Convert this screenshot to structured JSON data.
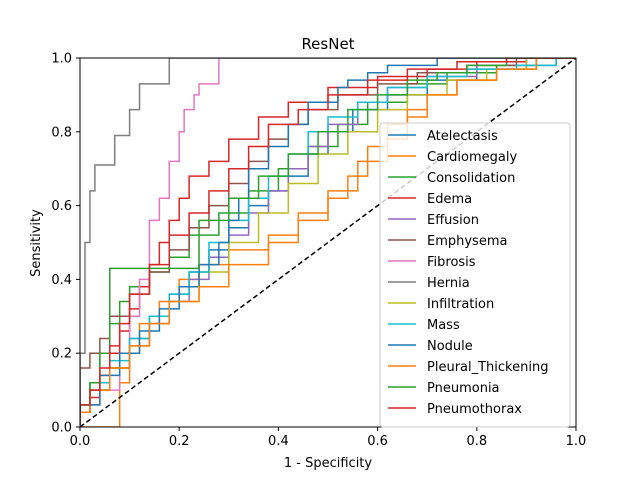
{
  "chart_data": {
    "type": "line",
    "title": "ResNet",
    "xlabel": "1 - Specificity",
    "ylabel": "Sensitivity",
    "xlim": [
      0,
      1
    ],
    "ylim": [
      0,
      1
    ],
    "xticks": [
      "0.0",
      "0.2",
      "0.4",
      "0.6",
      "0.8",
      "1.0"
    ],
    "yticks": [
      "0.0",
      "0.2",
      "0.4",
      "0.6",
      "0.8",
      "1.0"
    ],
    "grid": false,
    "legend_position": "lower-right",
    "diagonal": {
      "style": "dashed",
      "color": "#000000"
    },
    "series": [
      {
        "name": "Atelectasis",
        "color": "#1f77b4",
        "points": [
          [
            0,
            0
          ],
          [
            0.02,
            0.04
          ],
          [
            0.06,
            0.1
          ],
          [
            0.1,
            0.16
          ],
          [
            0.14,
            0.24
          ],
          [
            0.18,
            0.3
          ],
          [
            0.22,
            0.36
          ],
          [
            0.26,
            0.42
          ],
          [
            0.3,
            0.48
          ],
          [
            0.34,
            0.54
          ],
          [
            0.38,
            0.6
          ],
          [
            0.42,
            0.64
          ],
          [
            0.46,
            0.68
          ],
          [
            0.5,
            0.74
          ],
          [
            0.55,
            0.8
          ],
          [
            0.62,
            0.86
          ],
          [
            0.7,
            0.9
          ],
          [
            0.8,
            0.94
          ],
          [
            0.9,
            0.97
          ],
          [
            0.96,
            0.98
          ],
          [
            1,
            1
          ]
        ]
      },
      {
        "name": "Cardiomegaly",
        "color": "#ff7f0e",
        "points": [
          [
            0,
            0
          ],
          [
            0.08,
            0
          ],
          [
            0.08,
            0.08
          ],
          [
            0.1,
            0.12
          ],
          [
            0.12,
            0.2
          ],
          [
            0.16,
            0.28
          ],
          [
            0.2,
            0.34
          ],
          [
            0.24,
            0.4
          ],
          [
            0.3,
            0.44
          ],
          [
            0.38,
            0.48
          ],
          [
            0.44,
            0.52
          ],
          [
            0.5,
            0.58
          ],
          [
            0.56,
            0.64
          ],
          [
            0.62,
            0.72
          ],
          [
            0.66,
            0.78
          ],
          [
            0.7,
            0.84
          ],
          [
            0.76,
            0.9
          ],
          [
            0.84,
            0.94
          ],
          [
            0.92,
            0.97
          ],
          [
            1,
            1
          ]
        ]
      },
      {
        "name": "Consolidation",
        "color": "#2ca02c",
        "points": [
          [
            0,
            0
          ],
          [
            0.02,
            0.06
          ],
          [
            0.04,
            0.12
          ],
          [
            0.06,
            0.2
          ],
          [
            0.08,
            0.28
          ],
          [
            0.1,
            0.34
          ],
          [
            0.14,
            0.38
          ],
          [
            0.18,
            0.42
          ],
          [
            0.22,
            0.46
          ],
          [
            0.28,
            0.52
          ],
          [
            0.34,
            0.58
          ],
          [
            0.4,
            0.64
          ],
          [
            0.46,
            0.7
          ],
          [
            0.52,
            0.76
          ],
          [
            0.58,
            0.82
          ],
          [
            0.66,
            0.88
          ],
          [
            0.74,
            0.93
          ],
          [
            0.84,
            0.96
          ],
          [
            0.92,
            0.98
          ],
          [
            1,
            1
          ]
        ]
      },
      {
        "name": "Edema",
        "color": "#d62728",
        "points": [
          [
            0,
            0
          ],
          [
            0.02,
            0.04
          ],
          [
            0.04,
            0.08
          ],
          [
            0.06,
            0.14
          ],
          [
            0.08,
            0.2
          ],
          [
            0.1,
            0.26
          ],
          [
            0.12,
            0.32
          ],
          [
            0.14,
            0.38
          ],
          [
            0.16,
            0.44
          ],
          [
            0.18,
            0.5
          ],
          [
            0.2,
            0.56
          ],
          [
            0.22,
            0.62
          ],
          [
            0.26,
            0.68
          ],
          [
            0.3,
            0.72
          ],
          [
            0.36,
            0.78
          ],
          [
            0.42,
            0.84
          ],
          [
            0.5,
            0.88
          ],
          [
            0.6,
            0.92
          ],
          [
            0.7,
            0.95
          ],
          [
            0.8,
            0.97
          ],
          [
            0.9,
            0.99
          ],
          [
            1,
            1
          ]
        ]
      },
      {
        "name": "Effusion",
        "color": "#9467bd",
        "points": [
          [
            0,
            0
          ],
          [
            0.02,
            0.04
          ],
          [
            0.06,
            0.1
          ],
          [
            0.1,
            0.16
          ],
          [
            0.14,
            0.22
          ],
          [
            0.18,
            0.28
          ],
          [
            0.22,
            0.34
          ],
          [
            0.26,
            0.4
          ],
          [
            0.3,
            0.46
          ],
          [
            0.34,
            0.52
          ],
          [
            0.38,
            0.58
          ],
          [
            0.42,
            0.64
          ],
          [
            0.46,
            0.7
          ],
          [
            0.5,
            0.76
          ],
          [
            0.56,
            0.82
          ],
          [
            0.62,
            0.88
          ],
          [
            0.7,
            0.92
          ],
          [
            0.8,
            0.95
          ],
          [
            0.9,
            0.98
          ],
          [
            1,
            1
          ]
        ]
      },
      {
        "name": "Emphysema",
        "color": "#8c564b",
        "points": [
          [
            0,
            0
          ],
          [
            0,
            0.12
          ],
          [
            0.02,
            0.16
          ],
          [
            0.04,
            0.2
          ],
          [
            0.06,
            0.24
          ],
          [
            0.1,
            0.3
          ],
          [
            0.14,
            0.36
          ],
          [
            0.18,
            0.42
          ],
          [
            0.22,
            0.48
          ],
          [
            0.26,
            0.54
          ],
          [
            0.3,
            0.6
          ],
          [
            0.34,
            0.66
          ],
          [
            0.38,
            0.72
          ],
          [
            0.42,
            0.78
          ],
          [
            0.46,
            0.82
          ],
          [
            0.52,
            0.86
          ],
          [
            0.6,
            0.9
          ],
          [
            0.68,
            0.93
          ],
          [
            0.78,
            0.96
          ],
          [
            0.88,
            0.98
          ],
          [
            1,
            1
          ]
        ]
      },
      {
        "name": "Fibrosis",
        "color": "#e377c2",
        "points": [
          [
            0,
            0
          ],
          [
            0.02,
            0.04
          ],
          [
            0.04,
            0.06
          ],
          [
            0.08,
            0.1
          ],
          [
            0.1,
            0.2
          ],
          [
            0.12,
            0.3
          ],
          [
            0.14,
            0.4
          ],
          [
            0.14,
            0.5
          ],
          [
            0.16,
            0.56
          ],
          [
            0.18,
            0.62
          ],
          [
            0.2,
            0.72
          ],
          [
            0.21,
            0.8
          ],
          [
            0.23,
            0.86
          ],
          [
            0.24,
            0.9
          ],
          [
            0.28,
            0.93
          ],
          [
            0.28,
            1
          ],
          [
            1,
            1
          ]
        ]
      },
      {
        "name": "Hernia",
        "color": "#7f7f7f",
        "points": [
          [
            0,
            0
          ],
          [
            0,
            0.14
          ],
          [
            0.01,
            0.2
          ],
          [
            0.02,
            0.5
          ],
          [
            0.02,
            0.57
          ],
          [
            0.03,
            0.64
          ],
          [
            0.04,
            0.71
          ],
          [
            0.07,
            0.71
          ],
          [
            0.07,
            0.79
          ],
          [
            0.1,
            0.79
          ],
          [
            0.1,
            0.86
          ],
          [
            0.12,
            0.86
          ],
          [
            0.12,
            0.93
          ],
          [
            0.18,
            0.93
          ],
          [
            0.19,
            1
          ],
          [
            1,
            1
          ]
        ]
      },
      {
        "name": "Infiltration",
        "color": "#bcbd22",
        "points": [
          [
            0,
            0
          ],
          [
            0.02,
            0.04
          ],
          [
            0.06,
            0.1
          ],
          [
            0.1,
            0.16
          ],
          [
            0.14,
            0.22
          ],
          [
            0.18,
            0.28
          ],
          [
            0.24,
            0.34
          ],
          [
            0.3,
            0.42
          ],
          [
            0.36,
            0.5
          ],
          [
            0.42,
            0.58
          ],
          [
            0.48,
            0.66
          ],
          [
            0.54,
            0.74
          ],
          [
            0.6,
            0.8
          ],
          [
            0.66,
            0.86
          ],
          [
            0.74,
            0.9
          ],
          [
            0.82,
            0.94
          ],
          [
            0.9,
            0.97
          ],
          [
            1,
            1
          ]
        ]
      },
      {
        "name": "Mass",
        "color": "#17becf",
        "points": [
          [
            0,
            0
          ],
          [
            0.02,
            0.06
          ],
          [
            0.06,
            0.12
          ],
          [
            0.1,
            0.18
          ],
          [
            0.14,
            0.24
          ],
          [
            0.18,
            0.3
          ],
          [
            0.22,
            0.36
          ],
          [
            0.26,
            0.42
          ],
          [
            0.3,
            0.5
          ],
          [
            0.34,
            0.56
          ],
          [
            0.38,
            0.62
          ],
          [
            0.42,
            0.68
          ],
          [
            0.46,
            0.74
          ],
          [
            0.5,
            0.8
          ],
          [
            0.56,
            0.84
          ],
          [
            0.62,
            0.88
          ],
          [
            0.7,
            0.92
          ],
          [
            0.78,
            0.95
          ],
          [
            0.88,
            0.97
          ],
          [
            0.96,
            0.98
          ],
          [
            1,
            1
          ]
        ]
      },
      {
        "name": "Nodule",
        "color": "#1f77b4",
        "points": [
          [
            0,
            0
          ],
          [
            0.04,
            0.06
          ],
          [
            0.08,
            0.14
          ],
          [
            0.12,
            0.2
          ],
          [
            0.16,
            0.26
          ],
          [
            0.2,
            0.32
          ],
          [
            0.24,
            0.38
          ],
          [
            0.28,
            0.44
          ],
          [
            0.3,
            0.5
          ],
          [
            0.32,
            0.56
          ],
          [
            0.34,
            0.62
          ],
          [
            0.38,
            0.7
          ],
          [
            0.42,
            0.76
          ],
          [
            0.46,
            0.82
          ],
          [
            0.52,
            0.88
          ],
          [
            0.54,
            0.92
          ],
          [
            0.58,
            0.94
          ],
          [
            0.62,
            0.96
          ],
          [
            0.66,
            0.98
          ],
          [
            0.72,
            0.98
          ],
          [
            0.72,
            1
          ],
          [
            1,
            1
          ]
        ]
      },
      {
        "name": "Pleural_Thickening",
        "color": "#ff7f0e",
        "points": [
          [
            0,
            0
          ],
          [
            0.02,
            0.04
          ],
          [
            0.06,
            0.1
          ],
          [
            0.1,
            0.16
          ],
          [
            0.14,
            0.22
          ],
          [
            0.18,
            0.28
          ],
          [
            0.24,
            0.34
          ],
          [
            0.3,
            0.38
          ],
          [
            0.38,
            0.44
          ],
          [
            0.44,
            0.5
          ],
          [
            0.5,
            0.56
          ],
          [
            0.54,
            0.62
          ],
          [
            0.58,
            0.68
          ],
          [
            0.62,
            0.76
          ],
          [
            0.66,
            0.82
          ],
          [
            0.7,
            0.86
          ],
          [
            0.76,
            0.9
          ],
          [
            0.84,
            0.94
          ],
          [
            0.92,
            0.97
          ],
          [
            1,
            1
          ]
        ]
      },
      {
        "name": "Pneumonia",
        "color": "#2ca02c",
        "points": [
          [
            0,
            0
          ],
          [
            0.02,
            0.06
          ],
          [
            0.04,
            0.12
          ],
          [
            0.06,
            0.2
          ],
          [
            0.06,
            0.43
          ],
          [
            0.16,
            0.43
          ],
          [
            0.24,
            0.43
          ],
          [
            0.24,
            0.5
          ],
          [
            0.3,
            0.56
          ],
          [
            0.36,
            0.62
          ],
          [
            0.42,
            0.68
          ],
          [
            0.48,
            0.74
          ],
          [
            0.54,
            0.8
          ],
          [
            0.6,
            0.86
          ],
          [
            0.66,
            0.9
          ],
          [
            0.72,
            0.94
          ],
          [
            0.78,
            0.96
          ],
          [
            0.86,
            0.98
          ],
          [
            1,
            1
          ]
        ]
      },
      {
        "name": "Pneumothorax",
        "color": "#d62728",
        "points": [
          [
            0,
            0
          ],
          [
            0.02,
            0.06
          ],
          [
            0.04,
            0.1
          ],
          [
            0.06,
            0.16
          ],
          [
            0.08,
            0.22
          ],
          [
            0.1,
            0.28
          ],
          [
            0.14,
            0.36
          ],
          [
            0.18,
            0.44
          ],
          [
            0.22,
            0.52
          ],
          [
            0.26,
            0.58
          ],
          [
            0.3,
            0.64
          ],
          [
            0.34,
            0.7
          ],
          [
            0.38,
            0.76
          ],
          [
            0.44,
            0.82
          ],
          [
            0.5,
            0.86
          ],
          [
            0.58,
            0.9
          ],
          [
            0.66,
            0.94
          ],
          [
            0.76,
            0.97
          ],
          [
            0.86,
            0.99
          ],
          [
            1,
            1
          ]
        ]
      }
    ]
  }
}
